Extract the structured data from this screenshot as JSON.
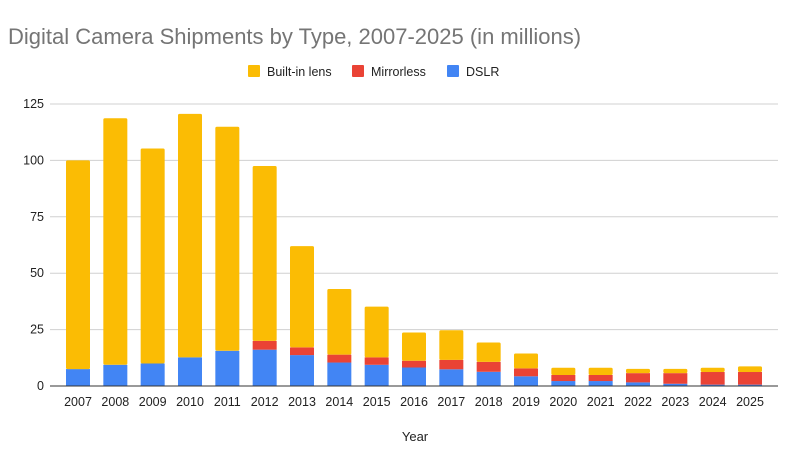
{
  "chart_data": {
    "type": "bar",
    "stacked": true,
    "title": "Digital Camera Shipments by Type, 2007-2025 (in millions)",
    "xlabel": "Year",
    "ylabel": "",
    "ylim": [
      0,
      125
    ],
    "yticks": [
      "0",
      "25",
      "50",
      "75",
      "100",
      "125"
    ],
    "grid": true,
    "legend_position": "top",
    "categories": [
      "2007",
      "2008",
      "2009",
      "2010",
      "2011",
      "2012",
      "2013",
      "2014",
      "2015",
      "2016",
      "2017",
      "2018",
      "2019",
      "2020",
      "2021",
      "2022",
      "2023",
      "2024",
      "2025"
    ],
    "series": [
      {
        "name": "DSLR",
        "color": "#4285f4",
        "values": [
          7.5,
          9.4,
          10,
          12.7,
          15.6,
          16.1,
          13.7,
          10.4,
          9.4,
          8.2,
          7.4,
          6.3,
          4.3,
          2.2,
          2.2,
          1.6,
          1.0,
          0.6,
          0.6
        ]
      },
      {
        "name": "Mirrorless",
        "color": "#ea4335",
        "values": [
          0,
          0,
          0,
          0,
          0,
          3.9,
          3.4,
          3.5,
          3.3,
          3.0,
          4.2,
          4.4,
          3.5,
          2.7,
          2.7,
          4.1,
          4.7,
          5.6,
          5.6
        ]
      },
      {
        "name": "Built-in lens",
        "color": "#fbbc04",
        "values": [
          92.5,
          109.3,
          95.3,
          107.9,
          99.3,
          77.5,
          44.9,
          29.1,
          22.5,
          12.5,
          13.1,
          8.6,
          6.6,
          3.2,
          3.2,
          1.9,
          1.9,
          1.9,
          2.5
        ]
      }
    ],
    "legend_order": [
      "Built-in lens",
      "Mirrorless",
      "DSLR"
    ]
  }
}
